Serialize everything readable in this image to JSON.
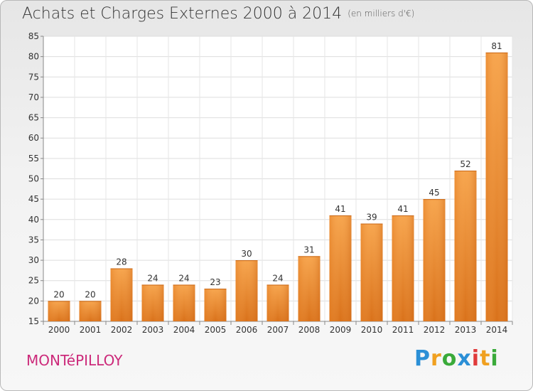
{
  "chart_data": {
    "type": "bar",
    "title": "Achats et Charges Externes 2000 à 2014",
    "subtitle": "(en milliers d'€)",
    "categories": [
      "2000",
      "2001",
      "2002",
      "2003",
      "2004",
      "2005",
      "2006",
      "2007",
      "2008",
      "2009",
      "2010",
      "2011",
      "2012",
      "2013",
      "2014"
    ],
    "values": [
      20,
      20,
      28,
      24,
      24,
      23,
      30,
      24,
      31,
      41,
      39,
      41,
      45,
      52,
      81
    ],
    "ylim": [
      15,
      85
    ],
    "yticks": [
      15,
      20,
      25,
      30,
      35,
      40,
      45,
      50,
      55,
      60,
      65,
      70,
      75,
      80,
      85
    ],
    "grid": true,
    "bar_color": "#f0903a"
  },
  "town_name": "MONTéPILLOY",
  "logo": {
    "text": "Proxiti",
    "letters": [
      "P",
      "r",
      "o",
      "x",
      "i",
      "t",
      "i"
    ],
    "colors": [
      "#2b8fd6",
      "#f0a020",
      "#3aaa3a",
      "#2b8fd6",
      "#e03a3a",
      "#f0a020",
      "#3aaa3a"
    ]
  }
}
